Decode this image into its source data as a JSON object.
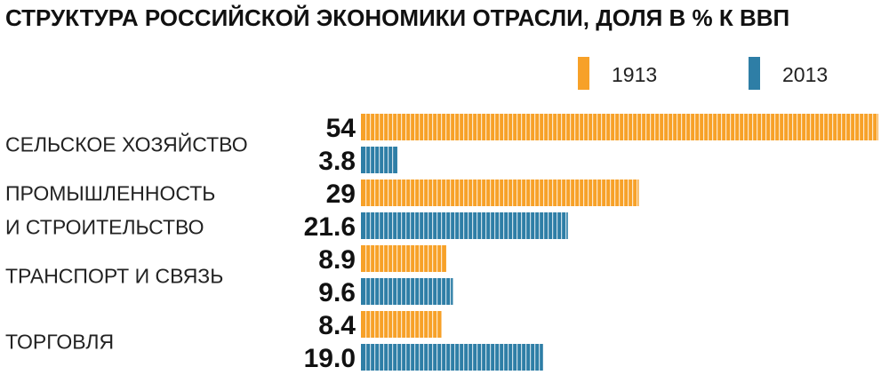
{
  "chart_data": {
    "type": "bar",
    "orientation": "horizontal",
    "title": "СТРУКТУРА РОССИЙСКОЙ ЭКОНОМИКИ ОТРАСЛИ, ДОЛЯ В % К ВВП",
    "categories": [
      [
        "СЕЛЬСКОЕ ХОЗЯЙСТВО"
      ],
      [
        "ПРОМЫШЛЕННОСТЬ",
        "И СТРОИТЕЛЬСТВО"
      ],
      [
        "ТРАНСПОРТ И СВЯЗЬ"
      ],
      [
        "ТОРГОВЛЯ"
      ]
    ],
    "series": [
      {
        "name": "1913",
        "color": "#f7a128",
        "values": [
          54,
          29,
          8.9,
          8.4
        ],
        "labels": [
          "54",
          "29",
          "8.9",
          "8.4"
        ]
      },
      {
        "name": "2013",
        "color": "#2e7ea6",
        "values": [
          3.8,
          21.6,
          9.6,
          19.0
        ],
        "labels": [
          "3.8",
          "21.6",
          "9.6",
          "19.0"
        ]
      }
    ],
    "xlim": [
      0,
      54
    ],
    "legend_position": "top-right",
    "grid": false
  }
}
